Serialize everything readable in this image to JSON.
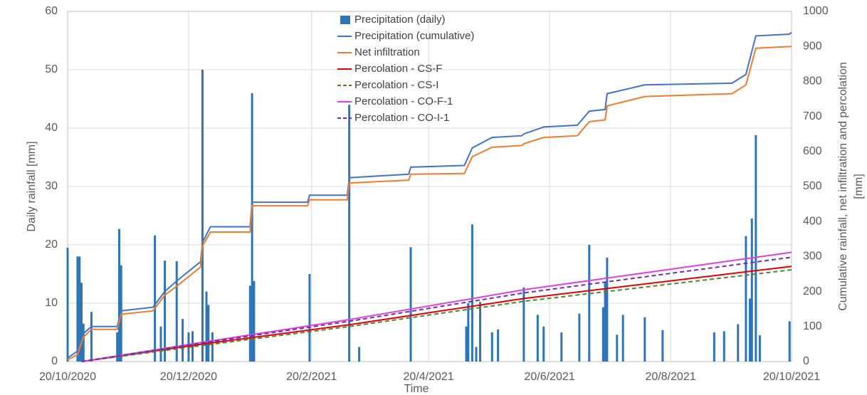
{
  "chart_data": {
    "type": "combo",
    "xlabel": "Time",
    "ylabel": "Daily rainfall [mm]",
    "y2label": [
      "Cumulative rainfall, net infiltration and percolation",
      "[mm]"
    ],
    "xlim": [
      "2020-10-20",
      "2021-10-20"
    ],
    "xticks": [
      {
        "value": "2020-10-20",
        "label": "20/10/2020"
      },
      {
        "value": "2020-12-20",
        "label": "20/12/2020"
      },
      {
        "value": "2021-02-20",
        "label": "20/2/2021"
      },
      {
        "value": "2021-04-20",
        "label": "20/4/2021"
      },
      {
        "value": "2021-06-20",
        "label": "20/6/2021"
      },
      {
        "value": "2021-08-20",
        "label": "20/8/2021"
      },
      {
        "value": "2021-10-20",
        "label": "20/10/2021"
      }
    ],
    "ylim": [
      0,
      60
    ],
    "yticks": [
      0,
      10,
      20,
      30,
      40,
      50,
      60
    ],
    "y2lim": [
      0,
      1000
    ],
    "y2ticks": [
      0,
      100,
      200,
      300,
      400,
      500,
      600,
      700,
      800,
      900,
      1000
    ],
    "grid": true,
    "legend": "top",
    "series": [
      {
        "name": "Precipitation (daily)",
        "type": "bar",
        "axis": "y",
        "color": "#2e75b6",
        "x": [
          "2020-10-20",
          "2020-10-25",
          "2020-10-26",
          "2020-10-27",
          "2020-10-28",
          "2020-11-01",
          "2020-11-14",
          "2020-11-15",
          "2020-11-16",
          "2020-12-03",
          "2020-12-06",
          "2020-12-08",
          "2020-12-14",
          "2020-12-17",
          "2020-12-20",
          "2020-12-22",
          "2020-12-27",
          "2020-12-29",
          "2020-12-30",
          "2021-01-01",
          "2021-01-20",
          "2021-01-21",
          "2021-01-22",
          "2021-02-19",
          "2021-03-11",
          "2021-03-16",
          "2021-04-11",
          "2021-05-09",
          "2021-05-10",
          "2021-05-12",
          "2021-05-14",
          "2021-05-16",
          "2021-05-22",
          "2021-05-25",
          "2021-06-07",
          "2021-06-14",
          "2021-06-17",
          "2021-06-26",
          "2021-07-05",
          "2021-07-10",
          "2021-07-17",
          "2021-07-18",
          "2021-07-19",
          "2021-07-24",
          "2021-07-27",
          "2021-08-07",
          "2021-08-16",
          "2021-09-11",
          "2021-09-16",
          "2021-09-23",
          "2021-09-27",
          "2021-09-29",
          "2021-09-30",
          "2021-10-02",
          "2021-10-04",
          "2021-10-19"
        ],
        "values": [
          19.5,
          18,
          18,
          13.5,
          6.5,
          8.5,
          5,
          22.7,
          16.5,
          21.6,
          6,
          17.3,
          17.2,
          7.3,
          5,
          5.2,
          50,
          12,
          9.7,
          5,
          13,
          46,
          13.8,
          15,
          44,
          2.5,
          19.6,
          6,
          10,
          23.5,
          2.5,
          10.2,
          5,
          5.5,
          12.7,
          8,
          6,
          5,
          8.2,
          20,
          9.3,
          13.6,
          17.8,
          4.6,
          8,
          7.6,
          5.4,
          5,
          5.2,
          6.4,
          21.5,
          10.8,
          24.5,
          38.8,
          4.5,
          6.9
        ]
      },
      {
        "name": "Precipitation (cumulative)",
        "type": "line",
        "axis": "y2",
        "color": "#4472c4",
        "dashed": false,
        "x": [
          "2020-10-20",
          "2020-10-25",
          "2020-10-28",
          "2020-11-01",
          "2020-11-14",
          "2020-11-16",
          "2020-12-02",
          "2020-12-08",
          "2020-12-14",
          "2020-12-26",
          "2020-12-27",
          "2020-12-31",
          "2021-01-20",
          "2021-01-21",
          "2021-02-18",
          "2021-02-19",
          "2021-03-10",
          "2021-03-11",
          "2021-04-10",
          "2021-04-11",
          "2021-05-08",
          "2021-05-12",
          "2021-05-22",
          "2021-06-06",
          "2021-06-07",
          "2021-06-17",
          "2021-07-04",
          "2021-07-10",
          "2021-07-18",
          "2021-07-19",
          "2021-08-07",
          "2021-09-20",
          "2021-09-27",
          "2021-10-02",
          "2021-10-19",
          "2021-10-20"
        ],
        "values": [
          10,
          30,
          80,
          100,
          100,
          145,
          155,
          200,
          230,
          285,
          340,
          385,
          385,
          455,
          455,
          475,
          475,
          525,
          535,
          555,
          560,
          610,
          640,
          645,
          650,
          670,
          675,
          715,
          720,
          765,
          790,
          795,
          820,
          930,
          935,
          940
        ]
      },
      {
        "name": "Net infiltration",
        "type": "line",
        "axis": "y2",
        "color": "#ed7d31",
        "dashed": false,
        "x": [
          "2020-10-20",
          "2020-10-25",
          "2020-10-28",
          "2020-11-01",
          "2020-11-14",
          "2020-11-16",
          "2020-12-02",
          "2020-12-08",
          "2020-12-14",
          "2020-12-26",
          "2020-12-27",
          "2020-12-31",
          "2021-01-20",
          "2021-01-21",
          "2021-02-18",
          "2021-02-19",
          "2021-03-10",
          "2021-03-11",
          "2021-04-10",
          "2021-04-11",
          "2021-05-08",
          "2021-05-12",
          "2021-05-22",
          "2021-06-06",
          "2021-06-07",
          "2021-06-17",
          "2021-07-04",
          "2021-07-10",
          "2021-07-18",
          "2021-07-19",
          "2021-08-07",
          "2021-09-20",
          "2021-09-27",
          "2021-10-02",
          "2021-10-20"
        ],
        "values": [
          5,
          20,
          70,
          92,
          92,
          135,
          145,
          190,
          215,
          270,
          330,
          370,
          370,
          445,
          445,
          462,
          462,
          510,
          518,
          535,
          537,
          585,
          612,
          617,
          622,
          640,
          645,
          685,
          690,
          730,
          757,
          765,
          790,
          895,
          900
        ]
      },
      {
        "name": "Percolation - CS-F",
        "type": "line",
        "axis": "y2",
        "color": "#e00000",
        "dashed": false,
        "x": [
          "2020-10-27",
          "2020-12-27",
          "2021-03-11",
          "2021-06-07",
          "2021-10-20"
        ],
        "values": [
          0,
          50,
          105,
          180,
          272
        ]
      },
      {
        "name": "Percolation - CS-I",
        "type": "line",
        "axis": "y2",
        "color": "#548235",
        "dashed": true,
        "x": [
          "2020-10-27",
          "2020-12-27",
          "2021-03-11",
          "2021-06-07",
          "2021-10-20"
        ],
        "values": [
          0,
          46,
          100,
          172,
          262
        ]
      },
      {
        "name": "Percolation - CO-F-1",
        "type": "line",
        "axis": "y2",
        "color": "#e040e0",
        "dashed": false,
        "x": [
          "2020-10-27",
          "2020-12-27",
          "2021-03-11",
          "2021-06-07",
          "2021-10-20"
        ],
        "values": [
          0,
          55,
          120,
          205,
          312
        ]
      },
      {
        "name": "Percolation - CO-I-1",
        "type": "line",
        "axis": "y2",
        "color": "#7030a0",
        "dashed": true,
        "x": [
          "2020-10-27",
          "2020-12-27",
          "2021-03-11",
          "2021-06-07",
          "2021-10-20"
        ],
        "values": [
          0,
          53,
          115,
          196,
          298
        ]
      }
    ]
  }
}
